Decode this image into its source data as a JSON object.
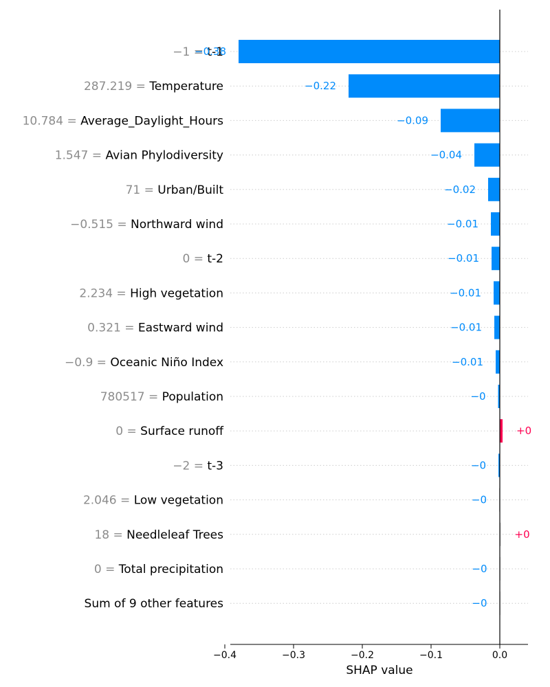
{
  "chart_data": {
    "type": "bar",
    "orientation": "horizontal",
    "xlabel": "SHAP value",
    "xlim": [
      -0.42,
      0.045
    ],
    "xticks": [
      -0.4,
      -0.3,
      -0.2,
      -0.1,
      0.0
    ],
    "xtick_labels": [
      "−0.4",
      "−0.3",
      "−0.2",
      "−0.1",
      "0.0"
    ],
    "grid": "dotted horizontal row guides",
    "colors": {
      "negative": "#008bfb",
      "positive": "#ff0051",
      "axis": "#000000",
      "feature_value": "#8c8c8c",
      "tiny_bar": "#cccccc",
      "grid": "#cccccc"
    },
    "rows": [
      {
        "value_label": "−1 =",
        "feature": "t-1",
        "shap": -0.38,
        "label": "−0.38"
      },
      {
        "value_label": "287.219 =",
        "feature": "Temperature",
        "shap": -0.22,
        "label": "−0.22"
      },
      {
        "value_label": "10.784 =",
        "feature": "Average_Daylight_Hours",
        "shap": -0.086,
        "label": "−0.09"
      },
      {
        "value_label": "1.547 =",
        "feature": "Avian Phylodiversity",
        "shap": -0.037,
        "label": "−0.04"
      },
      {
        "value_label": "71 =",
        "feature": "Urban/Built",
        "shap": -0.017,
        "label": "−0.02"
      },
      {
        "value_label": "−0.515 =",
        "feature": "Northward wind",
        "shap": -0.013,
        "label": "−0.01"
      },
      {
        "value_label": "0 =",
        "feature": "t-2",
        "shap": -0.012,
        "label": "−0.01"
      },
      {
        "value_label": "2.234 =",
        "feature": "High vegetation",
        "shap": -0.009,
        "label": "−0.01"
      },
      {
        "value_label": "0.321 =",
        "feature": "Eastward wind",
        "shap": -0.008,
        "label": "−0.01"
      },
      {
        "value_label": "−0.9 =",
        "feature": "Oceanic Niño Index",
        "shap": -0.006,
        "label": "−0.01"
      },
      {
        "value_label": "780517 =",
        "feature": "Population",
        "shap": -0.0025,
        "label": "−0"
      },
      {
        "value_label": "0 =",
        "feature": "Surface runoff",
        "shap": 0.004,
        "label": "+0"
      },
      {
        "value_label": "−2 =",
        "feature": "t-3",
        "shap": -0.002,
        "label": "−0"
      },
      {
        "value_label": "2.046 =",
        "feature": "Low vegetation",
        "shap": -0.001,
        "label": "−0"
      },
      {
        "value_label": "18 =",
        "feature": "Needleleaf Trees",
        "shap": 0.001,
        "label": "+0"
      },
      {
        "value_label": "0 =",
        "feature": "Total precipitation",
        "shap": -0.0005,
        "label": "−0"
      },
      {
        "value_label": "",
        "feature": "Sum of 9 other features",
        "shap": -0.0005,
        "label": "−0"
      }
    ]
  }
}
